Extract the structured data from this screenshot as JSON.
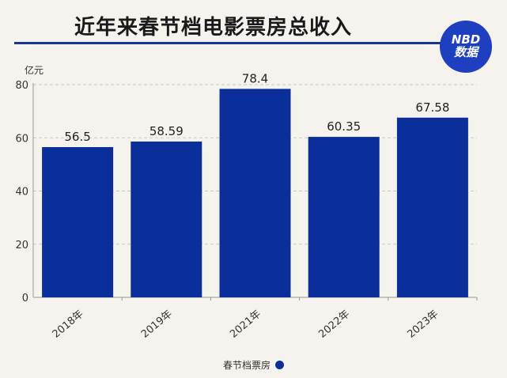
{
  "title": "近年来春节档电影票房总收入",
  "logo": {
    "top": "NBD",
    "bottom": "数据"
  },
  "unit_label": "亿元",
  "colors": {
    "bar": "#0b2f9a",
    "title_line": "#17349a",
    "logo_bg": "#1e40c0"
  },
  "chart_data": {
    "type": "bar",
    "title": "近年来春节档电影票房总收入",
    "ylabel": "亿元",
    "xlabel": "",
    "categories": [
      "2018年",
      "2019年",
      "2021年",
      "2022年",
      "2023年"
    ],
    "series": [
      {
        "name": "春节档票房",
        "values": [
          56.5,
          58.59,
          78.4,
          60.35,
          67.58
        ]
      }
    ],
    "data_labels": [
      "56.5",
      "58.59",
      "78.4",
      "60.35",
      "67.58"
    ],
    "ylim": [
      0,
      80
    ],
    "yticks": [
      0,
      20,
      40,
      60,
      80
    ],
    "grid": true,
    "legend_position": "bottom"
  },
  "legend": {
    "label": "春节档票房"
  }
}
